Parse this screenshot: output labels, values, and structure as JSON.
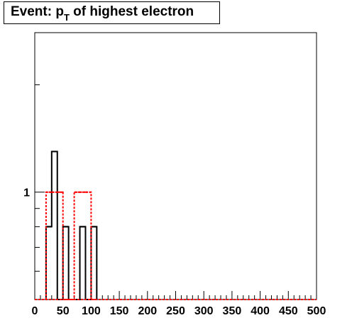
{
  "chart_data": {
    "type": "bar",
    "title": {
      "main": "Event: p",
      "subscript": "T",
      "rest": " of highest electron"
    },
    "xlabel": "",
    "ylabel": "",
    "xlim": [
      0,
      500
    ],
    "ylog": true,
    "ylim": [
      0.5,
      2.8
    ],
    "yticklabels": [
      {
        "value": 1,
        "label": "1"
      }
    ],
    "xticklabels": [
      "0",
      "50",
      "100",
      "150",
      "200",
      "250",
      "300",
      "350",
      "400",
      "450",
      "500"
    ],
    "xticks": [
      0,
      50,
      100,
      150,
      200,
      250,
      300,
      350,
      400,
      450,
      500
    ],
    "bin_width": 10,
    "series": [
      {
        "style": "solid",
        "color": "#000000",
        "bins": [
          {
            "x0": 20,
            "x1": 30,
            "value": 0.8
          },
          {
            "x0": 30,
            "x1": 40,
            "value": 1.3
          },
          {
            "x0": 40,
            "x1": 50,
            "value": 0.5
          },
          {
            "x0": 50,
            "x1": 60,
            "value": 0.8
          },
          {
            "x0": 60,
            "x1": 70,
            "value": 0.5
          },
          {
            "x0": 70,
            "x1": 80,
            "value": 0.5
          },
          {
            "x0": 80,
            "x1": 90,
            "value": 0.8
          },
          {
            "x0": 90,
            "x1": 100,
            "value": 0.5
          },
          {
            "x0": 100,
            "x1": 110,
            "value": 0.8
          }
        ]
      },
      {
        "style": "dashed",
        "color": "#ff0000",
        "bins": [
          {
            "x0": 20,
            "x1": 30,
            "value": 1.0
          },
          {
            "x0": 30,
            "x1": 40,
            "value": 1.0
          },
          {
            "x0": 40,
            "x1": 50,
            "value": 1.0
          },
          {
            "x0": 50,
            "x1": 60,
            "value": 0.5
          },
          {
            "x0": 60,
            "x1": 70,
            "value": 0.5
          },
          {
            "x0": 70,
            "x1": 80,
            "value": 1.0
          },
          {
            "x0": 80,
            "x1": 90,
            "value": 1.0
          },
          {
            "x0": 90,
            "x1": 100,
            "value": 1.0
          },
          {
            "x0": 100,
            "x1": 110,
            "value": 0.5
          }
        ]
      }
    ]
  }
}
